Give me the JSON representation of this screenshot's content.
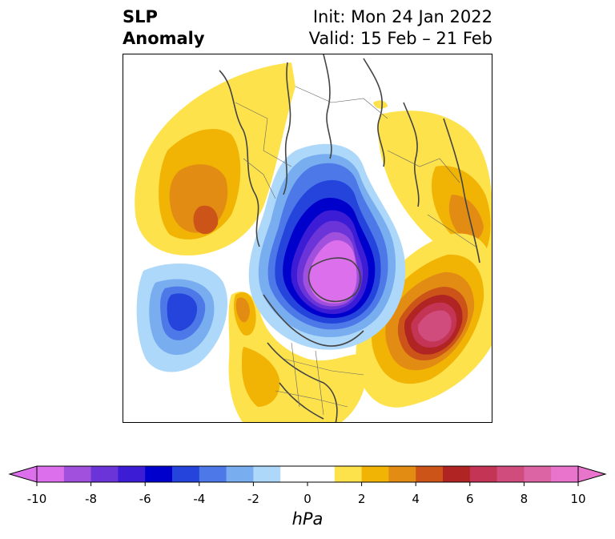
{
  "title": {
    "left_line1": "SLP",
    "left_line2": "Anomaly",
    "right_line1": "Init: Mon 24 Jan 2022",
    "right_line2": "Valid: 15 Feb – 21 Feb"
  },
  "colorbar": {
    "unit": "hPa",
    "min": -10,
    "max": 10,
    "step": 1,
    "tick_values": [
      -10,
      -8,
      -6,
      -4,
      -2,
      0,
      2,
      4,
      6,
      8,
      10
    ],
    "tick_labels": [
      "-10",
      "-8",
      "-6",
      "-4",
      "-2",
      "0",
      "2",
      "4",
      "6",
      "8",
      "10"
    ],
    "colors": [
      "#dc70ec",
      "#a050dc",
      "#6a34d8",
      "#3c1cd4",
      "#0000cc",
      "#2444dc",
      "#4c78e8",
      "#78aef0",
      "#aed8fa",
      "#ffffff",
      "#ffffff",
      "#fde24c",
      "#f2b404",
      "#e28c14",
      "#cc5418",
      "#b02424",
      "#c43454",
      "#d04c7c",
      "#dc64a4",
      "#e874cc"
    ]
  },
  "map": {
    "projection": "north-polar-stereographic",
    "regions": [
      {
        "name": "negative-anomaly-arctic-greenland",
        "min_value": -10
      },
      {
        "name": "negative-anomaly-north-pacific",
        "min_value": -6
      },
      {
        "name": "positive-anomaly-western-europe",
        "max_value": 5
      },
      {
        "name": "positive-anomaly-north-atlantic",
        "max_value": 9
      },
      {
        "name": "positive-anomaly-eastern-asia",
        "max_value": 4
      },
      {
        "name": "positive-anomaly-north-america",
        "max_value": 3
      }
    ]
  }
}
